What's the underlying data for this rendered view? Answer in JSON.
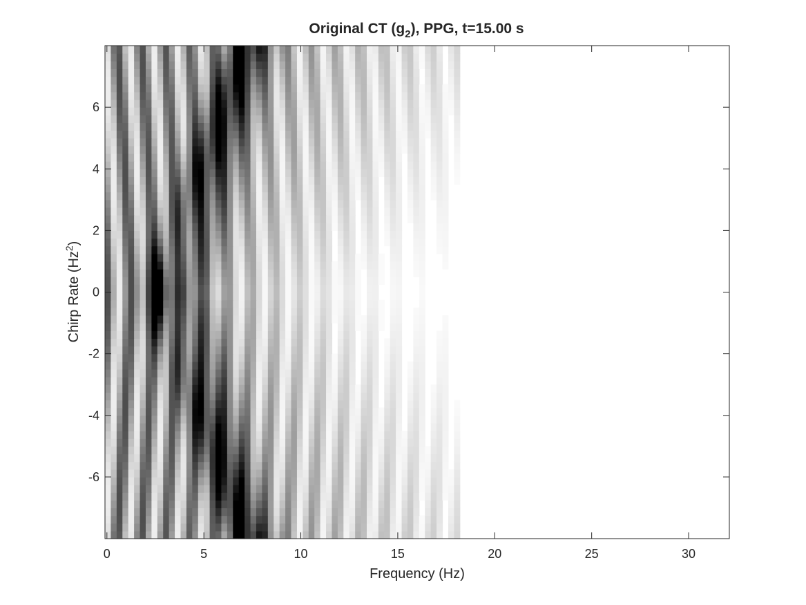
{
  "chart_data": {
    "type": "heatmap",
    "title": {
      "prefix": "Original CT (g",
      "subscript": "2",
      "suffix": "), PPG, t=15.00 s"
    },
    "xlabel": "Frequency (Hz)",
    "ylabel": {
      "text": "Chirp Rate (Hz",
      "superscript": "2",
      "close": ")"
    },
    "xlim": [
      -0.1,
      32.1
    ],
    "ylim": [
      -8,
      8
    ],
    "xticks": [
      0,
      5,
      10,
      15,
      20,
      25,
      30
    ],
    "yticks": [
      -6,
      -4,
      -2,
      0,
      2,
      4,
      6
    ],
    "xtick_labels": [
      "0",
      "5",
      "10",
      "15",
      "20",
      "25",
      "30"
    ],
    "ytick_labels": [
      "-6",
      "-4",
      "-2",
      "0",
      "2",
      "4",
      "6"
    ],
    "colormap": "gray (dark = high magnitude)",
    "grid": false,
    "legend": "none",
    "colors": {
      "axis": "#262626",
      "background": "#ffffff"
    }
  }
}
